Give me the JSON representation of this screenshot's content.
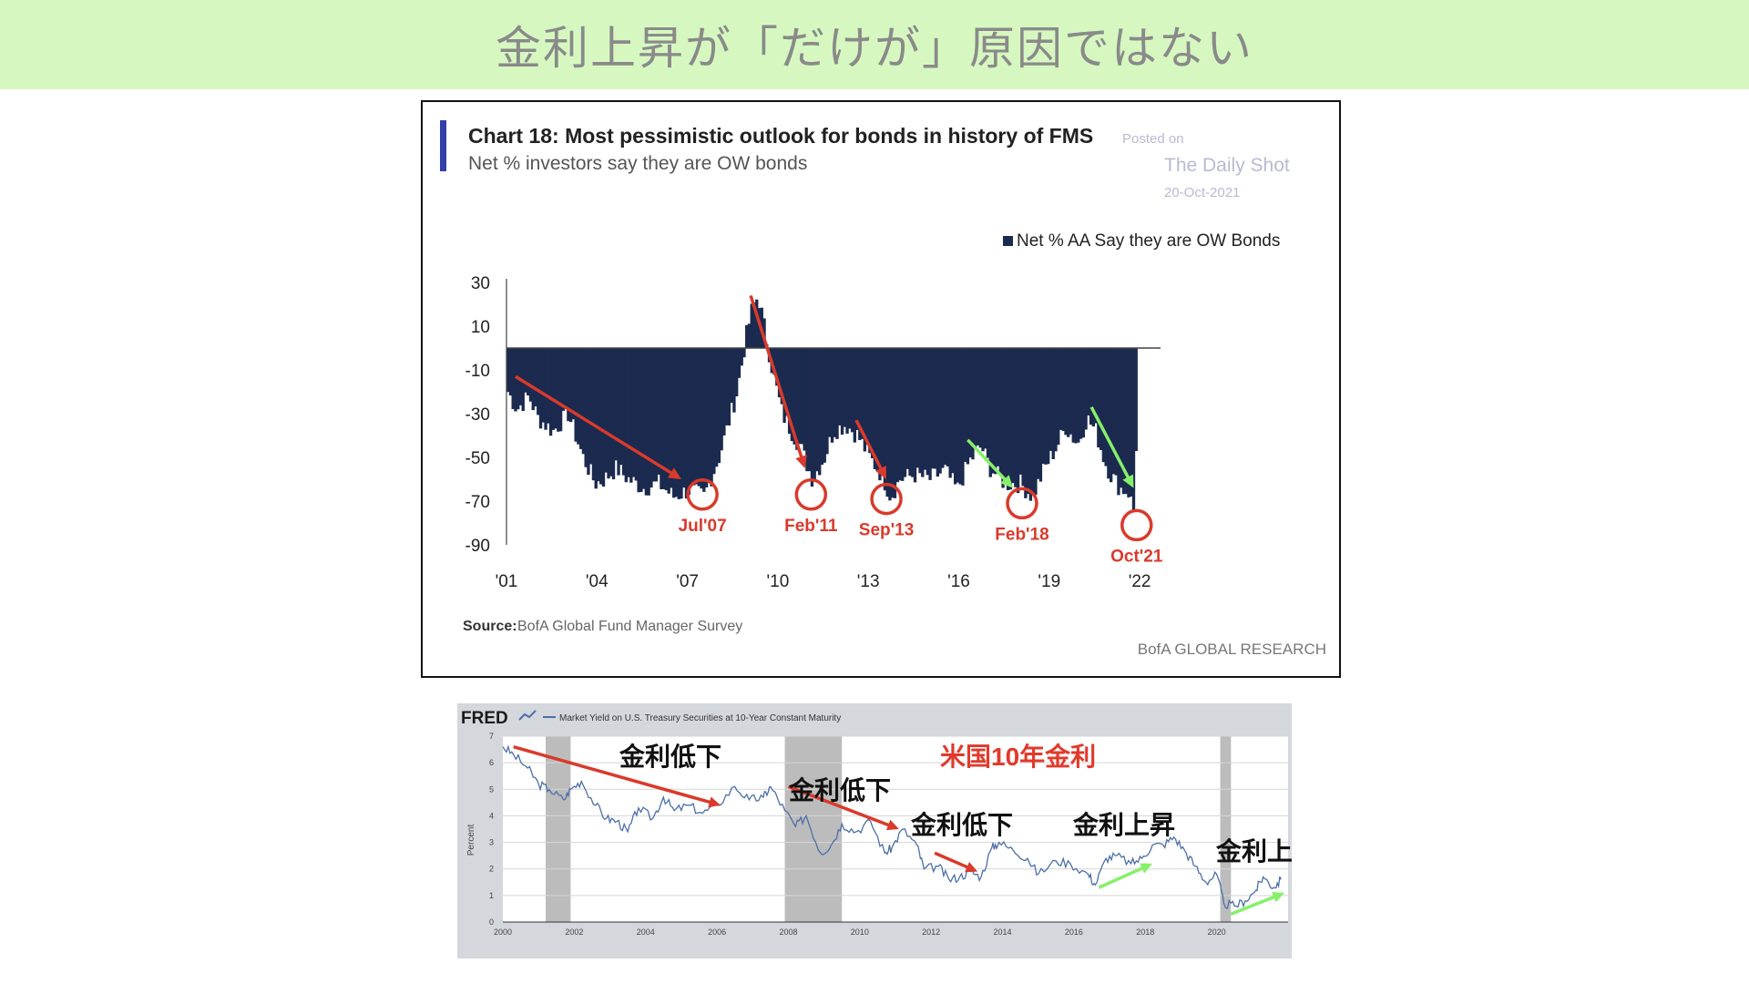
{
  "slide": {
    "title": "金利上昇が「だけが」原因ではない"
  },
  "chart1": {
    "title": "Chart 18: Most pessimistic outlook for bonds in history of FMS",
    "subtitle": "Net % investors say they are OW bonds",
    "legend": "Net % AA Say they are OW Bonds",
    "watermark": {
      "line1": "Posted on",
      "line2": "The Daily Shot",
      "line3": "20-Oct-2021"
    },
    "source_label": "Source:",
    "source_text": "BofA Global Fund Manager Survey",
    "brand": "BofA GLOBAL RESEARCH",
    "colors": {
      "bars": "#1b2a4e",
      "accent_bar": "#3340a8",
      "red": "#d93a2b",
      "green": "#86f06a"
    }
  },
  "chart2": {
    "brand": "FRED",
    "series_title": "Market Yield on U.S. Treasury Securities at 10-Year Constant Maturity",
    "ylabel": "Percent",
    "label_main": "米国10年金利",
    "annotations": {
      "a1": "金利低下",
      "a2": "金利低下",
      "a3": "金利低下",
      "a4": "金利上昇",
      "a5": "金利上昇"
    },
    "colors": {
      "line": "#4c6fa8",
      "recession": "#bcbcbc",
      "red": "#d93a2b",
      "green": "#86f06a"
    }
  },
  "chart_data": [
    {
      "type": "bar",
      "title": "Chart 18: Most pessimistic outlook for bonds in history of FMS",
      "subtitle": "Net % investors say they are OW bonds",
      "ylim": [
        -90,
        30
      ],
      "yticks": [
        30,
        10,
        -10,
        -30,
        -50,
        -70,
        -90
      ],
      "xlim": [
        2001,
        2022.3
      ],
      "xticks": [
        {
          "v": 2001,
          "l": "'01"
        },
        {
          "v": 2004,
          "l": "'04"
        },
        {
          "v": 2007,
          "l": "'07"
        },
        {
          "v": 2010,
          "l": "'10"
        },
        {
          "v": 2013,
          "l": "'13"
        },
        {
          "v": 2016,
          "l": "'16"
        },
        {
          "v": 2019,
          "l": "'19"
        },
        {
          "v": 2022,
          "l": "'22"
        }
      ],
      "series": [
        {
          "name": "Net % AA Say they are OW Bonds",
          "anchors": [
            [
              2001.0,
              -20
            ],
            [
              2001.3,
              -28
            ],
            [
              2001.7,
              -22
            ],
            [
              2002.0,
              -32
            ],
            [
              2002.5,
              -38
            ],
            [
              2003.0,
              -30
            ],
            [
              2003.5,
              -50
            ],
            [
              2003.9,
              -62
            ],
            [
              2004.2,
              -60
            ],
            [
              2004.6,
              -55
            ],
            [
              2005.0,
              -60
            ],
            [
              2005.5,
              -64
            ],
            [
              2006.0,
              -62
            ],
            [
              2006.5,
              -68
            ],
            [
              2007.0,
              -65
            ],
            [
              2007.5,
              -68
            ],
            [
              2008.0,
              -50
            ],
            [
              2008.3,
              -35
            ],
            [
              2008.6,
              -20
            ],
            [
              2008.9,
              5
            ],
            [
              2009.1,
              18
            ],
            [
              2009.3,
              24
            ],
            [
              2009.5,
              10
            ],
            [
              2009.8,
              -12
            ],
            [
              2010.1,
              -30
            ],
            [
              2010.4,
              -38
            ],
            [
              2010.7,
              -45
            ],
            [
              2011.1,
              -60
            ],
            [
              2011.5,
              -50
            ],
            [
              2011.8,
              -38
            ],
            [
              2012.2,
              -35
            ],
            [
              2012.6,
              -40
            ],
            [
              2013.0,
              -50
            ],
            [
              2013.4,
              -58
            ],
            [
              2013.7,
              -68
            ],
            [
              2014.0,
              -60
            ],
            [
              2014.5,
              -58
            ],
            [
              2015.0,
              -60
            ],
            [
              2015.5,
              -56
            ],
            [
              2015.9,
              -65
            ],
            [
              2016.3,
              -52
            ],
            [
              2016.7,
              -45
            ],
            [
              2017.0,
              -55
            ],
            [
              2017.5,
              -62
            ],
            [
              2018.0,
              -62
            ],
            [
              2018.4,
              -68
            ],
            [
              2018.8,
              -55
            ],
            [
              2019.2,
              -45
            ],
            [
              2019.5,
              -36
            ],
            [
              2019.9,
              -44
            ],
            [
              2020.2,
              -32
            ],
            [
              2020.5,
              -38
            ],
            [
              2020.8,
              -52
            ],
            [
              2021.0,
              -58
            ],
            [
              2021.3,
              -64
            ],
            [
              2021.6,
              -66
            ],
            [
              2021.8,
              -78
            ],
            [
              2021.85,
              -28
            ]
          ]
        }
      ],
      "annotations": [
        {
          "label": "Jul'07",
          "x": 2007.5,
          "y": -67,
          "color": "red"
        },
        {
          "label": "Feb'11",
          "x": 2011.1,
          "y": -67,
          "color": "red"
        },
        {
          "label": "Sep'13",
          "x": 2013.6,
          "y": -69,
          "color": "red"
        },
        {
          "label": "Feb'18",
          "x": 2018.1,
          "y": -71,
          "color": "red"
        },
        {
          "label": "Oct'21",
          "x": 2021.9,
          "y": -81,
          "color": "red"
        }
      ],
      "arrows": [
        {
          "from": [
            2001.3,
            -13
          ],
          "to": [
            2006.8,
            -60
          ],
          "color": "red"
        },
        {
          "from": [
            2009.1,
            24
          ],
          "to": [
            2010.9,
            -55
          ],
          "color": "red"
        },
        {
          "from": [
            2012.6,
            -33
          ],
          "to": [
            2013.6,
            -60
          ],
          "color": "red"
        },
        {
          "from": [
            2016.3,
            -42
          ],
          "to": [
            2017.8,
            -64
          ],
          "color": "green"
        },
        {
          "from": [
            2020.4,
            -27
          ],
          "to": [
            2021.8,
            -64
          ],
          "color": "green"
        }
      ],
      "legend_position": "top-right",
      "grid": false
    },
    {
      "type": "line",
      "title": "Market Yield on U.S. Treasury Securities at 10-Year Constant Maturity",
      "ylabel": "Percent",
      "ylim": [
        0,
        7
      ],
      "yticks": [
        0,
        1,
        2,
        3,
        4,
        5,
        6,
        7
      ],
      "xlim": [
        2000,
        2022
      ],
      "xticks": [
        2000,
        2002,
        2004,
        2006,
        2008,
        2010,
        2012,
        2014,
        2016,
        2018,
        2020
      ],
      "recessions": [
        [
          2001.2,
          2001.9
        ],
        [
          2007.9,
          2009.5
        ],
        [
          2020.1,
          2020.4
        ]
      ],
      "series": [
        {
          "name": "Market Yield on U.S. Treasury Securities at 10-Year Constant Maturity",
          "points": [
            [
              2000.0,
              6.6
            ],
            [
              2000.3,
              6.3
            ],
            [
              2000.7,
              5.8
            ],
            [
              2001.0,
              5.2
            ],
            [
              2001.3,
              5.0
            ],
            [
              2001.7,
              4.6
            ],
            [
              2001.9,
              5.0
            ],
            [
              2002.2,
              5.3
            ],
            [
              2002.6,
              4.4
            ],
            [
              2002.9,
              3.9
            ],
            [
              2003.2,
              3.8
            ],
            [
              2003.5,
              3.4
            ],
            [
              2003.8,
              4.3
            ],
            [
              2004.2,
              3.9
            ],
            [
              2004.5,
              4.7
            ],
            [
              2004.8,
              4.2
            ],
            [
              2005.2,
              4.4
            ],
            [
              2005.6,
              4.1
            ],
            [
              2006.0,
              4.4
            ],
            [
              2006.5,
              5.1
            ],
            [
              2006.9,
              4.6
            ],
            [
              2007.3,
              4.7
            ],
            [
              2007.5,
              5.1
            ],
            [
              2007.9,
              4.2
            ],
            [
              2008.2,
              3.6
            ],
            [
              2008.5,
              4.0
            ],
            [
              2008.9,
              2.6
            ],
            [
              2009.2,
              2.9
            ],
            [
              2009.5,
              3.7
            ],
            [
              2009.9,
              3.4
            ],
            [
              2010.3,
              3.8
            ],
            [
              2010.7,
              2.6
            ],
            [
              2010.9,
              2.8
            ],
            [
              2011.2,
              3.5
            ],
            [
              2011.6,
              2.9
            ],
            [
              2011.8,
              2.0
            ],
            [
              2012.2,
              2.1
            ],
            [
              2012.5,
              1.6
            ],
            [
              2012.8,
              1.7
            ],
            [
              2013.1,
              1.9
            ],
            [
              2013.4,
              1.7
            ],
            [
              2013.7,
              2.8
            ],
            [
              2013.9,
              3.0
            ],
            [
              2014.3,
              2.7
            ],
            [
              2014.7,
              2.4
            ],
            [
              2015.0,
              1.8
            ],
            [
              2015.5,
              2.3
            ],
            [
              2015.9,
              2.2
            ],
            [
              2016.4,
              1.8
            ],
            [
              2016.6,
              1.4
            ],
            [
              2016.9,
              2.4
            ],
            [
              2017.2,
              2.5
            ],
            [
              2017.6,
              2.2
            ],
            [
              2017.9,
              2.4
            ],
            [
              2018.2,
              2.9
            ],
            [
              2018.5,
              2.9
            ],
            [
              2018.8,
              3.2
            ],
            [
              2019.1,
              2.7
            ],
            [
              2019.4,
              2.1
            ],
            [
              2019.7,
              1.5
            ],
            [
              2020.0,
              1.8
            ],
            [
              2020.2,
              0.7
            ],
            [
              2020.5,
              0.6
            ],
            [
              2020.8,
              0.8
            ],
            [
              2021.1,
              1.2
            ],
            [
              2021.3,
              1.7
            ],
            [
              2021.6,
              1.3
            ],
            [
              2021.8,
              1.6
            ]
          ]
        }
      ],
      "arrows": [
        {
          "from": [
            2000.3,
            6.6
          ],
          "to": [
            2006.1,
            4.4
          ],
          "color": "red"
        },
        {
          "from": [
            2008.0,
            5.1
          ],
          "to": [
            2011.1,
            3.5
          ],
          "color": "red"
        },
        {
          "from": [
            2012.1,
            2.6
          ],
          "to": [
            2013.3,
            1.9
          ],
          "color": "red"
        },
        {
          "from": [
            2016.7,
            1.3
          ],
          "to": [
            2018.2,
            2.2
          ],
          "color": "green"
        },
        {
          "from": [
            2020.4,
            0.3
          ],
          "to": [
            2021.9,
            1.1
          ],
          "color": "green"
        }
      ],
      "grid": true
    }
  ]
}
